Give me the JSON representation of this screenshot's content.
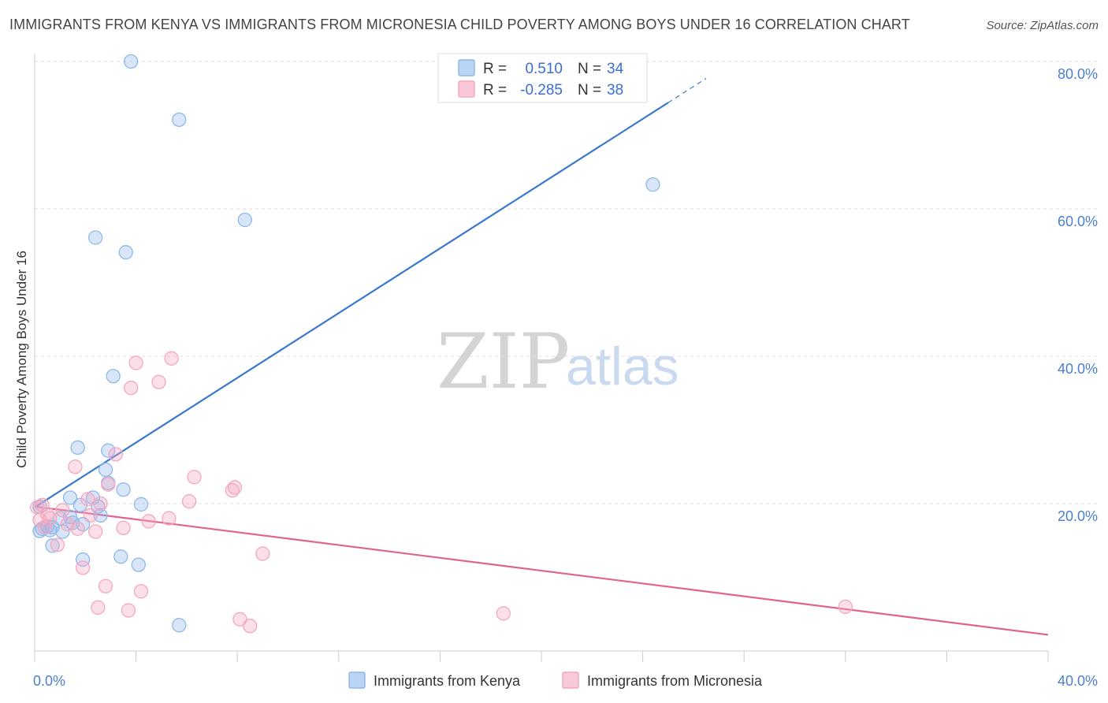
{
  "title": "IMMIGRANTS FROM KENYA VS IMMIGRANTS FROM MICRONESIA CHILD POVERTY AMONG BOYS UNDER 16 CORRELATION CHART",
  "source": "Source: ZipAtlas.com",
  "watermark": {
    "zip": "ZIP",
    "atlas": "atlas"
  },
  "legend_top": {
    "rows": [
      {
        "r_label": "R =",
        "r_value": "0.510",
        "n_label": "N =",
        "n_value": "34"
      },
      {
        "r_label": "R =",
        "r_value": "-0.285",
        "n_label": "N =",
        "n_value": "38"
      }
    ]
  },
  "chart_data": {
    "type": "scatter",
    "title": "IMMIGRANTS FROM KENYA VS IMMIGRANTS FROM MICRONESIA CHILD POVERTY AMONG BOYS UNDER 16 CORRELATION CHART",
    "xlabel": "",
    "ylabel": "Child Poverty Among Boys Under 16",
    "xlim": [
      0,
      40
    ],
    "ylim": [
      0,
      80
    ],
    "x_tick_labels": [
      {
        "value": 0,
        "label": "0.0%"
      },
      {
        "value": 40,
        "label": "40.0%"
      }
    ],
    "y_tick_labels": [
      {
        "value": 20,
        "label": "20.0%"
      },
      {
        "value": 40,
        "label": "40.0%"
      },
      {
        "value": 60,
        "label": "60.0%"
      },
      {
        "value": 80,
        "label": "80.0%"
      }
    ],
    "series": [
      {
        "name": "Immigrants from Kenya",
        "color": "#8fb8ea",
        "line_color": "#3a78d0",
        "r": 0.51,
        "n": 34,
        "trend": {
          "x0": 0,
          "y0": 19.5,
          "x1": 25,
          "y1": 74.4,
          "dash_x_end": 26.5
        },
        "points": [
          [
            3.8,
            80.0
          ],
          [
            5.7,
            72.1
          ],
          [
            24.4,
            63.3
          ],
          [
            8.3,
            58.5
          ],
          [
            2.4,
            56.1
          ],
          [
            3.6,
            54.1
          ],
          [
            3.1,
            37.3
          ],
          [
            1.7,
            27.6
          ],
          [
            2.9,
            27.2
          ],
          [
            2.8,
            24.6
          ],
          [
            2.9,
            22.8
          ],
          [
            3.5,
            21.9
          ],
          [
            1.4,
            20.8
          ],
          [
            2.3,
            20.8
          ],
          [
            4.2,
            19.9
          ],
          [
            1.8,
            19.8
          ],
          [
            2.5,
            19.6
          ],
          [
            0.2,
            19.6
          ],
          [
            2.6,
            18.4
          ],
          [
            1.4,
            18.2
          ],
          [
            1.0,
            18.0
          ],
          [
            1.5,
            17.4
          ],
          [
            1.9,
            17.2
          ],
          [
            0.5,
            16.9
          ],
          [
            0.7,
            16.8
          ],
          [
            0.3,
            16.6
          ],
          [
            0.2,
            16.3
          ],
          [
            0.6,
            16.4
          ],
          [
            1.1,
            16.2
          ],
          [
            0.7,
            14.3
          ],
          [
            3.4,
            12.8
          ],
          [
            1.9,
            12.4
          ],
          [
            4.1,
            11.7
          ],
          [
            5.7,
            3.5
          ]
        ]
      },
      {
        "name": "Immigrants from Micronesia",
        "color": "#f4a7c1",
        "line_color": "#e0648f",
        "r": -0.285,
        "n": 38,
        "trend": {
          "x0": 0,
          "y0": 19.6,
          "x1": 40,
          "y1": 2.2
        },
        "points": [
          [
            5.4,
            39.7
          ],
          [
            4.0,
            39.1
          ],
          [
            4.9,
            36.5
          ],
          [
            3.8,
            35.7
          ],
          [
            3.2,
            26.7
          ],
          [
            1.6,
            25.0
          ],
          [
            6.3,
            23.6
          ],
          [
            7.9,
            22.2
          ],
          [
            7.8,
            21.8
          ],
          [
            2.9,
            22.6
          ],
          [
            2.1,
            20.6
          ],
          [
            6.1,
            20.3
          ],
          [
            2.6,
            20.0
          ],
          [
            0.3,
            19.8
          ],
          [
            0.1,
            19.5
          ],
          [
            1.1,
            19.1
          ],
          [
            0.5,
            18.6
          ],
          [
            2.2,
            18.4
          ],
          [
            0.6,
            18.0
          ],
          [
            0.2,
            17.8
          ],
          [
            5.3,
            18.0
          ],
          [
            4.5,
            17.6
          ],
          [
            1.3,
            17.2
          ],
          [
            1.7,
            16.6
          ],
          [
            3.5,
            16.7
          ],
          [
            2.4,
            16.2
          ],
          [
            0.9,
            14.4
          ],
          [
            9.0,
            13.2
          ],
          [
            1.9,
            11.3
          ],
          [
            2.8,
            8.8
          ],
          [
            4.2,
            8.1
          ],
          [
            2.5,
            5.9
          ],
          [
            3.7,
            5.5
          ],
          [
            18.5,
            5.1
          ],
          [
            8.1,
            4.3
          ],
          [
            32.0,
            6.0
          ],
          [
            8.5,
            3.4
          ],
          [
            0.4,
            16.8
          ]
        ]
      }
    ]
  },
  "legend_bottom": [
    "Immigrants from Kenya",
    "Immigrants from Micronesia"
  ]
}
